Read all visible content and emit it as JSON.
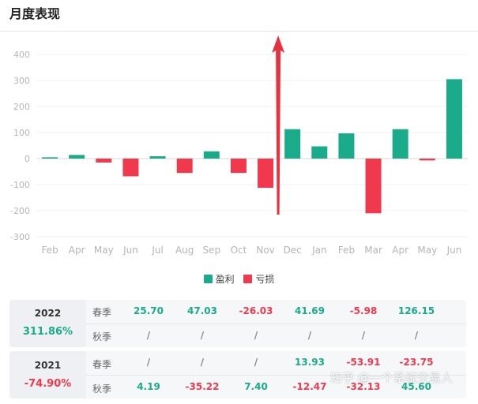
{
  "header": {
    "title": "月度表现"
  },
  "chart_data": {
    "type": "bar",
    "categories": [
      "Feb",
      "Apr",
      "May",
      "Jun",
      "Jul",
      "Aug",
      "Sep",
      "Oct",
      "Nov",
      "Dec",
      "Jan",
      "Feb",
      "Mar",
      "Apr",
      "May",
      "Jun"
    ],
    "values": [
      5,
      14,
      -15,
      -68,
      9,
      -55,
      28,
      -55,
      -112,
      113,
      47,
      97,
      -210,
      113,
      -7,
      305
    ],
    "yticks": [
      400,
      300,
      200,
      100,
      0,
      -100,
      -200,
      -300
    ],
    "ylim": [
      -300,
      400
    ],
    "legend": [
      {
        "label": "盈利",
        "color": "#1aab8a"
      },
      {
        "label": "亏损",
        "color": "#f0394d"
      }
    ],
    "colors": {
      "positive": "#1aab8a",
      "negative": "#f0394d",
      "arrow": "#e8313f"
    },
    "grid": true,
    "legend_position": "bottom-center"
  },
  "table": [
    {
      "year": "2022",
      "return_pct": "311.86%",
      "return_sign": "pos",
      "rows": [
        {
          "season": "春季",
          "values": [
            "25.70",
            "47.03",
            "-26.03",
            "41.69",
            "-5.98",
            "126.15"
          ],
          "signs": [
            "pos",
            "pos",
            "neg",
            "pos",
            "neg",
            "pos"
          ]
        },
        {
          "season": "秋季",
          "values": [
            "/",
            "/",
            "/",
            "/",
            "/",
            "/"
          ],
          "signs": [
            "na",
            "na",
            "na",
            "na",
            "na",
            "na"
          ]
        }
      ]
    },
    {
      "year": "2021",
      "return_pct": "-74.90%",
      "return_sign": "neg",
      "rows": [
        {
          "season": "春季",
          "values": [
            "/",
            "/",
            "/",
            "13.93",
            "-53.91",
            "-23.75"
          ],
          "signs": [
            "na",
            "na",
            "na",
            "pos",
            "neg",
            "neg"
          ]
        },
        {
          "season": "秋季",
          "values": [
            "4.19",
            "-35.22",
            "7.40",
            "-12.47",
            "-32.13",
            "45.60"
          ],
          "signs": [
            "pos",
            "neg",
            "pos",
            "neg",
            "neg",
            "pos"
          ]
        }
      ]
    }
  ],
  "watermark": "知乎 @一个系统交易人"
}
